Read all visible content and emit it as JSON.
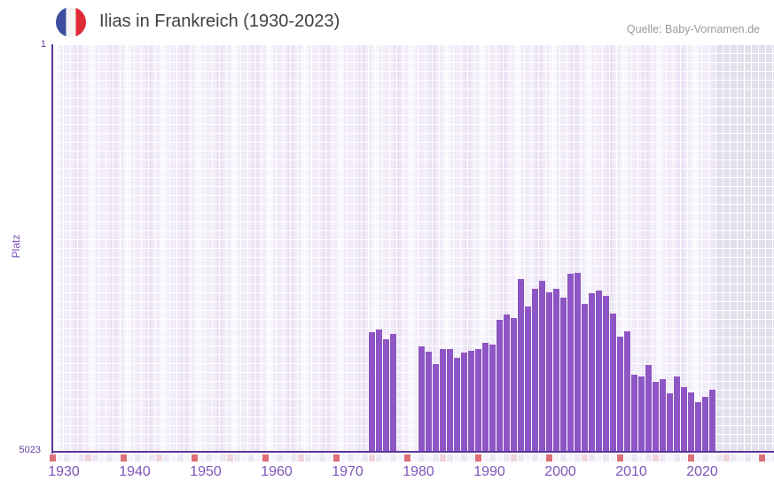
{
  "header": {
    "title": "Ilias in Frankreich (1930-2023)",
    "flag_icon": "french-flag-icon",
    "source": "Quelle: Baby-Vornamen.de"
  },
  "y_axis": {
    "label": "Platz",
    "top_tick": "1",
    "bottom_tick": "5023"
  },
  "chart_data": {
    "type": "bar",
    "title": "Ilias in Frankreich (1930-2023)",
    "xlabel": "",
    "ylabel": "Platz",
    "y_scale": "log",
    "y_inverted": true,
    "ylim": [
      1,
      5023
    ],
    "x_range": [
      1930,
      2023
    ],
    "x_ticks": [
      1930,
      1940,
      1950,
      1960,
      1970,
      1980,
      1990,
      2000,
      2010,
      2020
    ],
    "grid": true,
    "legend": false,
    "no_data_years": [
      [
        1930,
        1973
      ],
      [
        1978,
        1980
      ],
      [
        2023,
        2023
      ]
    ],
    "bars": [
      {
        "year": 1974,
        "platz": 415
      },
      {
        "year": 1975,
        "platz": 392
      },
      {
        "year": 1976,
        "platz": 482
      },
      {
        "year": 1977,
        "platz": 431
      },
      {
        "year": 1981,
        "platz": 559
      },
      {
        "year": 1982,
        "platz": 614
      },
      {
        "year": 1983,
        "platz": 796
      },
      {
        "year": 1984,
        "platz": 581
      },
      {
        "year": 1985,
        "platz": 581
      },
      {
        "year": 1986,
        "platz": 699
      },
      {
        "year": 1987,
        "platz": 626
      },
      {
        "year": 1988,
        "platz": 603
      },
      {
        "year": 1989,
        "platz": 581
      },
      {
        "year": 1990,
        "platz": 519
      },
      {
        "year": 1991,
        "platz": 538
      },
      {
        "year": 1992,
        "platz": 320
      },
      {
        "year": 1993,
        "platz": 286
      },
      {
        "year": 1994,
        "platz": 308
      },
      {
        "year": 1995,
        "platz": 136
      },
      {
        "year": 1996,
        "platz": 242
      },
      {
        "year": 1997,
        "platz": 167
      },
      {
        "year": 1998,
        "platz": 141
      },
      {
        "year": 1999,
        "platz": 180
      },
      {
        "year": 2000,
        "platz": 167
      },
      {
        "year": 2001,
        "platz": 201
      },
      {
        "year": 2002,
        "platz": 122
      },
      {
        "year": 2003,
        "platz": 119
      },
      {
        "year": 2004,
        "platz": 229
      },
      {
        "year": 2005,
        "platz": 183
      },
      {
        "year": 2006,
        "platz": 173
      },
      {
        "year": 2007,
        "platz": 194
      },
      {
        "year": 2008,
        "platz": 281
      },
      {
        "year": 2009,
        "platz": 448
      },
      {
        "year": 2010,
        "platz": 408
      },
      {
        "year": 2011,
        "platz": 995
      },
      {
        "year": 2012,
        "platz": 1033
      },
      {
        "year": 2013,
        "platz": 811
      },
      {
        "year": 2014,
        "platz": 1156
      },
      {
        "year": 2015,
        "platz": 1092
      },
      {
        "year": 2016,
        "platz": 1472
      },
      {
        "year": 2017,
        "platz": 1033
      },
      {
        "year": 2018,
        "platz": 1291
      },
      {
        "year": 2019,
        "platz": 1445
      },
      {
        "year": 2020,
        "platz": 1774
      },
      {
        "year": 2021,
        "platz": 1585
      },
      {
        "year": 2022,
        "platz": 1368
      }
    ]
  },
  "colors": {
    "bar": "#8e55c4",
    "axis": "#5c3798",
    "x_tick_label": "#7e55bb",
    "y_tick_label": "#66409f",
    "tick_square_decade": "#dd6f78",
    "tick_square_half_decade": "#f0d3dd",
    "tick_square_even": "#f6f4fa",
    "tick_square_odd": "#ece7f3",
    "plot_tile": "#f1ecf8",
    "no_data_tile": "#e3dfeb",
    "flag_blue": "#3c4c9e",
    "flag_white": "#f4f4f4",
    "flag_red": "#df2b35"
  }
}
